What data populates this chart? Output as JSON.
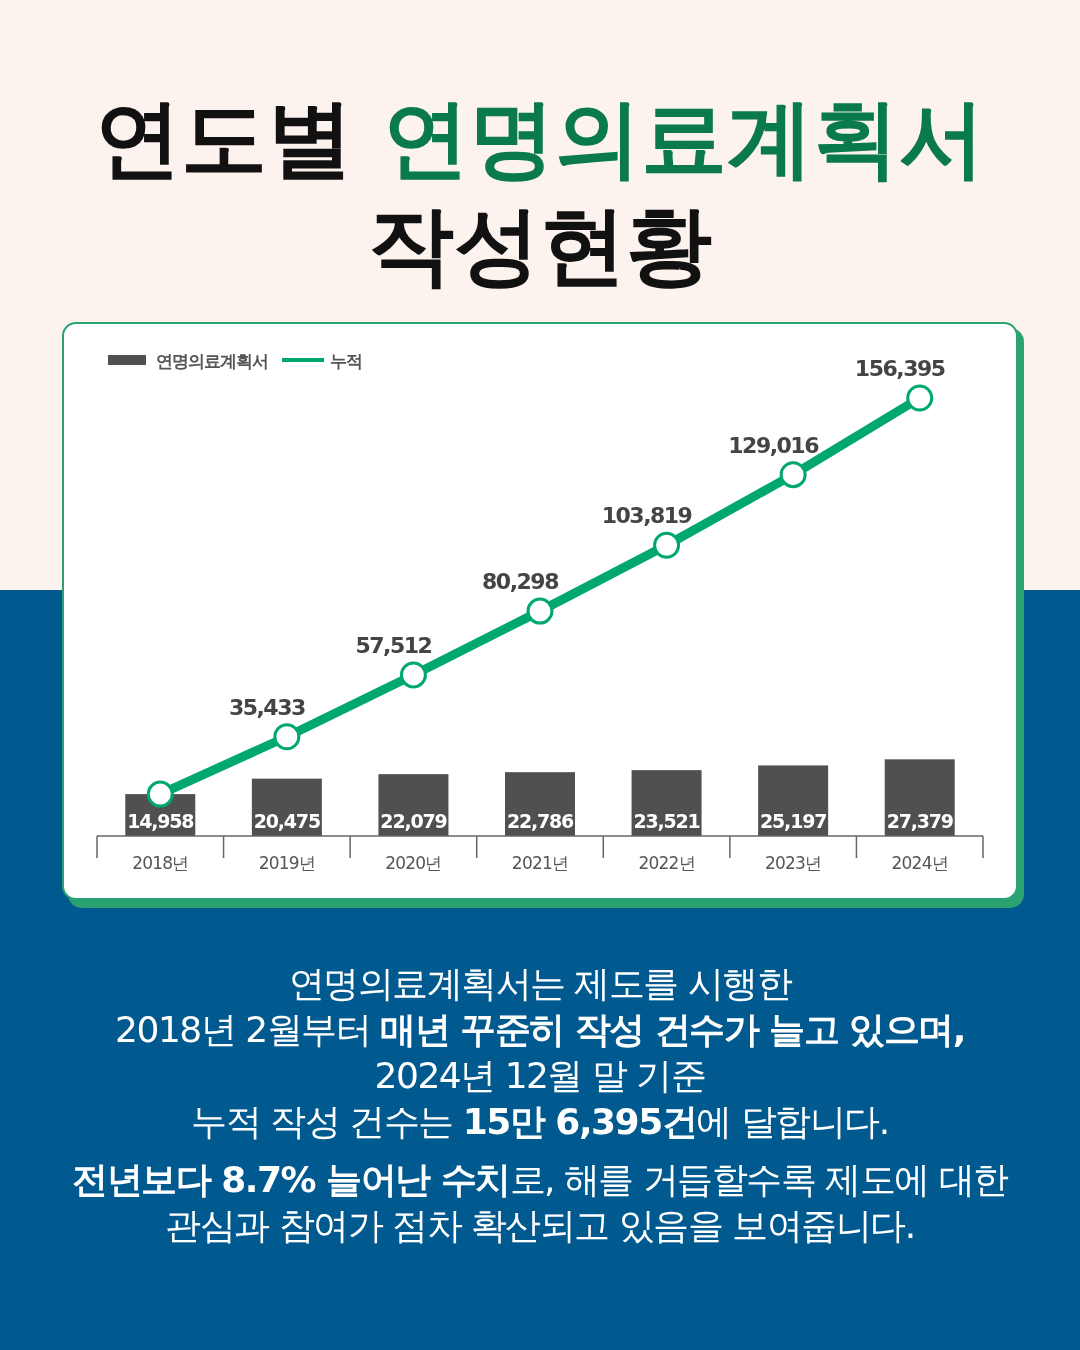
{
  "chart_data": {
    "type": "bar",
    "title": "연도별 연명의료계획서 작성현황",
    "categories": [
      "2018년",
      "2019년",
      "2020년",
      "2021년",
      "2022년",
      "2023년",
      "2024년"
    ],
    "series": [
      {
        "name": "연명의료계획서",
        "color": "#505050",
        "values": [
          14958,
          20475,
          22079,
          22786,
          23521,
          25197,
          27379
        ],
        "value_labels": [
          "14,958",
          "20,475",
          "22,079",
          "22,786",
          "23,521",
          "25,197",
          "27,379"
        ]
      },
      {
        "name": "누적",
        "type": "line",
        "color": "#00a870",
        "marker": "circle",
        "values": [
          14958,
          35433,
          57512,
          80298,
          103819,
          129016,
          156395
        ],
        "value_labels": [
          null,
          "35,433",
          "57,512",
          "80,298",
          "103,819",
          "129,016",
          "156,395"
        ]
      }
    ],
    "data_labels": true,
    "legend": "top left",
    "annotations": [
      "연명의료계획서는 제도를 시행한\n2018년 2월부터 **매년 꾸준히 작성 건수가 늘고 있으며,**\n2024년 12월 말 기준\n누적 작성 건수는 **15만 6,395건**에 달합니다.",
      "**전년보다 8.7% 늘어난 수치**로, 해를 거듭할수록 제도에 대한\n관심과 참여가 점차 확산되고 있음을 보여줍니다."
    ]
  }
}
